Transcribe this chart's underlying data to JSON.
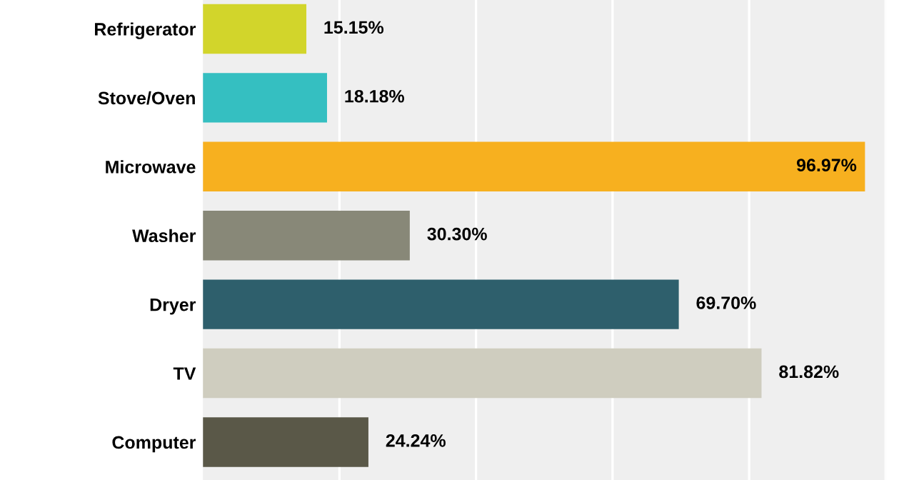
{
  "chart_data": {
    "type": "bar",
    "orientation": "horizontal",
    "categories": [
      "Refrigerator",
      "Stove/Oven",
      "Microwave",
      "Washer",
      "Dryer",
      "TV",
      "Computer"
    ],
    "values": [
      15.15,
      18.18,
      96.97,
      30.3,
      69.7,
      81.82,
      24.24
    ],
    "colors": [
      "#d2d52b",
      "#35bfc1",
      "#f7b01f",
      "#888878",
      "#2e5f6c",
      "#cfcdbf",
      "#5a5848"
    ],
    "xlim": [
      0,
      100
    ],
    "xticks": [
      {
        "value": 20,
        "label": null
      },
      {
        "value": 40,
        "label": null
      },
      {
        "value": 60,
        "label": null
      },
      {
        "value": 80,
        "label": null
      },
      {
        "value": 100,
        "label": null
      }
    ],
    "value_labels": [
      "15.15%",
      "18.18%",
      "96.97%",
      "30.30%",
      "69.70%",
      "81.82%",
      "24.24%"
    ],
    "grid": "x",
    "tick_labels": "y"
  }
}
